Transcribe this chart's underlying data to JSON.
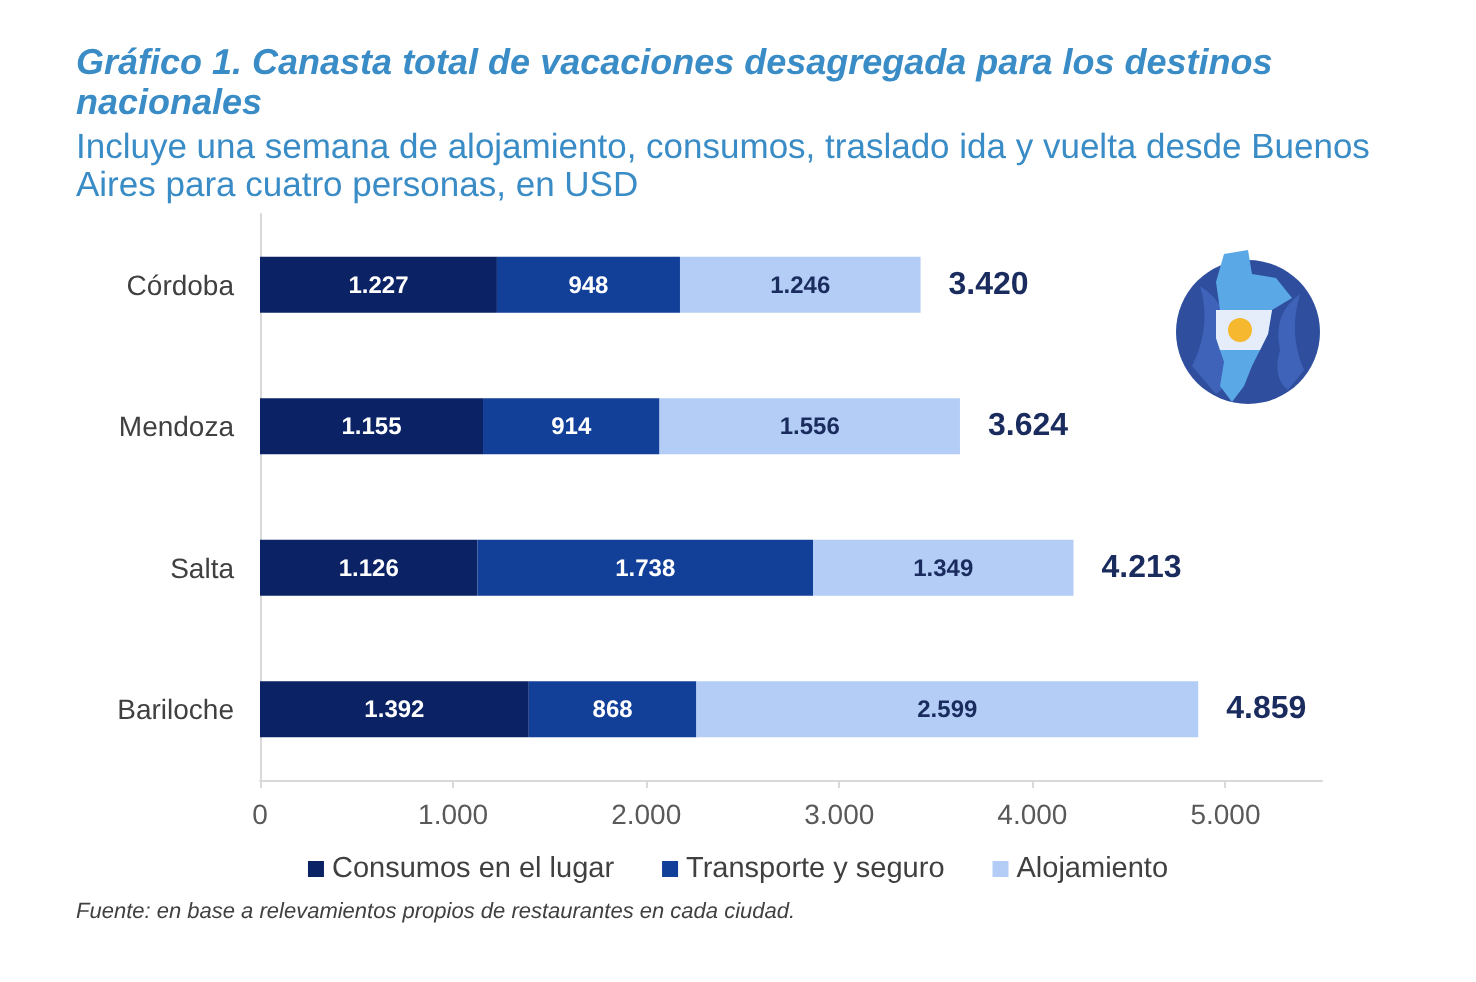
{
  "chart_data": {
    "type": "bar",
    "orientation": "horizontal",
    "stacked": true,
    "title": "Gráfico 1. Canasta total de vacaciones desagregada para los destinos nacionales",
    "subtitle": "Incluye una semana de alojamiento, consumos, traslado ida y vuelta desde Buenos Aires para cuatro personas, en USD",
    "categories": [
      "Córdoba",
      "Mendoza",
      "Salta",
      "Bariloche"
    ],
    "series": [
      {
        "name": "Consumos en el lugar",
        "color": "#0b2265",
        "values": [
          1227,
          1155,
          1126,
          1392
        ],
        "value_labels": [
          "1.227",
          "1.155",
          "1.126",
          "1.392"
        ]
      },
      {
        "name": "Transporte y seguro",
        "color": "#123f98",
        "values": [
          948,
          914,
          1738,
          868
        ],
        "value_labels": [
          "948",
          "914",
          "1.738",
          "868"
        ]
      },
      {
        "name": "Alojamiento",
        "color": "#b4cdf6",
        "values": [
          1246,
          1556,
          1349,
          2599
        ],
        "value_labels": [
          "1.246",
          "1.556",
          "1.349",
          "2.599"
        ]
      }
    ],
    "totals": [
      "3.420",
      "3.624",
      "4.213",
      "4.859"
    ],
    "xlim": [
      0,
      5500
    ],
    "xticks": [
      0,
      {
        "value": 1000,
        "label": "1.000"
      },
      {
        "value": 2000,
        "label": "2.000"
      },
      {
        "value": 3000,
        "label": "3.000"
      },
      {
        "value": 4000,
        "label": "4.000"
      },
      {
        "value": 5000,
        "label": "5.000"
      }
    ],
    "grid": false,
    "legend": "bottom",
    "annotations": [
      "Fuente: en base a relevamientos propios de restaurantes en cada ciudad."
    ]
  }
}
